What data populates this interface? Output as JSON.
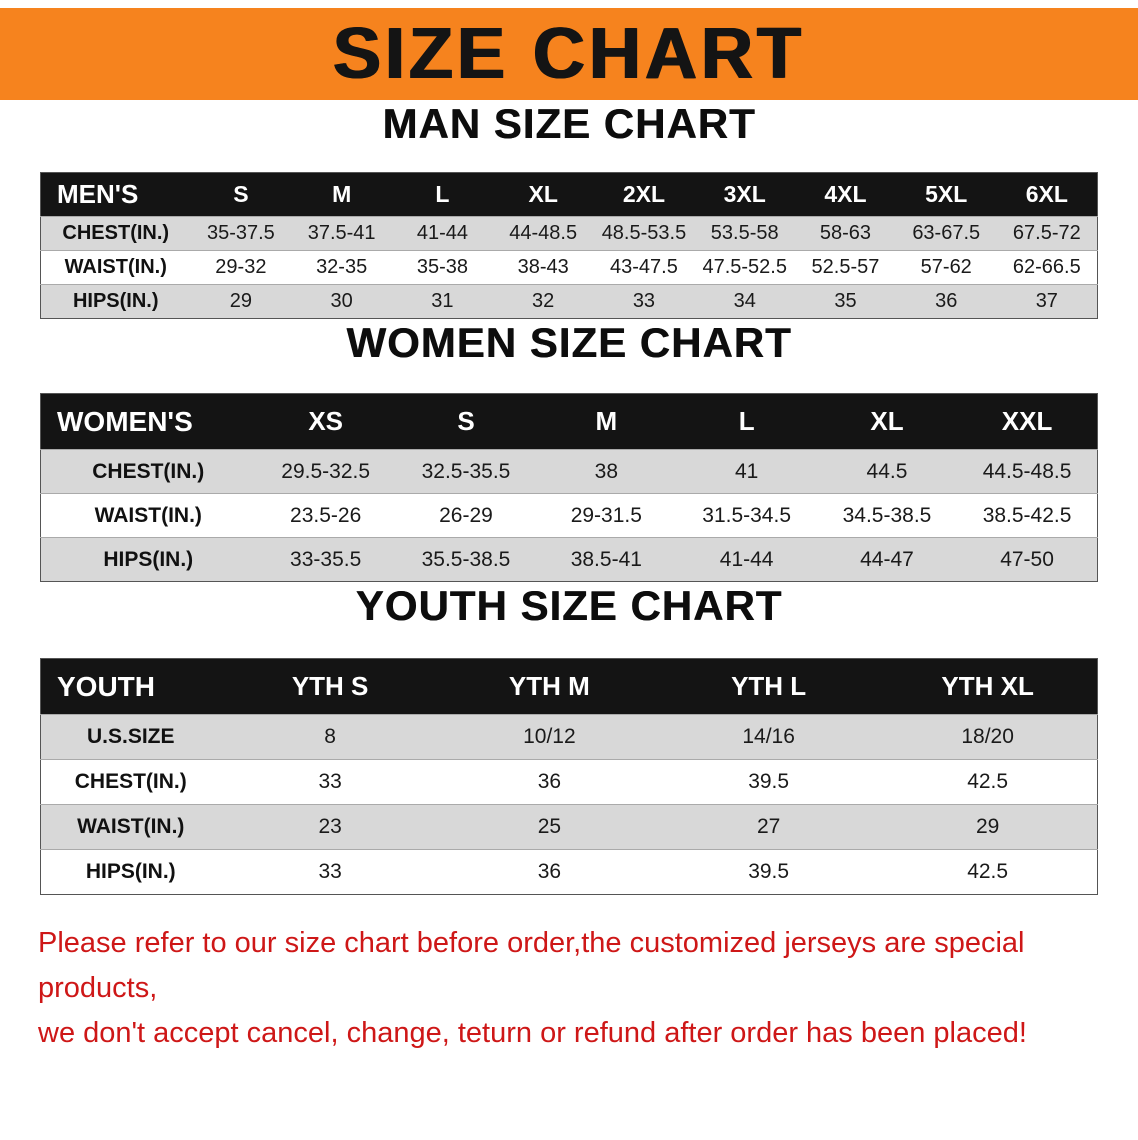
{
  "banner": {
    "title": "SIZE CHART"
  },
  "colors": {
    "banner_bg": "#F6831E",
    "table_header_bg": "#141414",
    "row_stripe": "#D8D8D8",
    "disclaimer_text": "#CE1717"
  },
  "sections": [
    {
      "heading": "MAN SIZE CHART",
      "table": {
        "header": [
          "MEN'S",
          "S",
          "M",
          "L",
          "XL",
          "2XL",
          "3XL",
          "4XL",
          "5XL",
          "6XL"
        ],
        "rows": [
          {
            "label": "CHEST(IN.)",
            "values": [
              "35-37.5",
              "37.5-41",
              "41-44",
              "44-48.5",
              "48.5-53.5",
              "53.5-58",
              "58-63",
              "63-67.5",
              "67.5-72"
            ]
          },
          {
            "label": "WAIST(IN.)",
            "values": [
              "29-32",
              "32-35",
              "35-38",
              "38-43",
              "43-47.5",
              "47.5-52.5",
              "52.5-57",
              "57-62",
              "62-66.5"
            ]
          },
          {
            "label": "HIPS(IN.)",
            "values": [
              "29",
              "30",
              "31",
              "32",
              "33",
              "34",
              "35",
              "36",
              "37"
            ]
          }
        ]
      }
    },
    {
      "heading": "WOMEN SIZE CHART",
      "table": {
        "header": [
          "WOMEN'S",
          "XS",
          "S",
          "M",
          "L",
          "XL",
          "XXL"
        ],
        "rows": [
          {
            "label": "CHEST(IN.)",
            "values": [
              "29.5-32.5",
              "32.5-35.5",
              "38",
              "41",
              "44.5",
              "44.5-48.5"
            ]
          },
          {
            "label": "WAIST(IN.)",
            "values": [
              "23.5-26",
              "26-29",
              "29-31.5",
              "31.5-34.5",
              "34.5-38.5",
              "38.5-42.5"
            ]
          },
          {
            "label": "HIPS(IN.)",
            "values": [
              "33-35.5",
              "35.5-38.5",
              "38.5-41",
              "41-44",
              "44-47",
              "47-50"
            ]
          }
        ]
      }
    },
    {
      "heading": "YOUTH SIZE CHART",
      "table": {
        "header": [
          "YOUTH",
          "YTH S",
          "YTH M",
          "YTH L",
          "YTH XL"
        ],
        "rows": [
          {
            "label": "U.S.SIZE",
            "values": [
              "8",
              "10/12",
              "14/16",
              "18/20"
            ]
          },
          {
            "label": "CHEST(IN.)",
            "values": [
              "33",
              "36",
              "39.5",
              "42.5"
            ]
          },
          {
            "label": "WAIST(IN.)",
            "values": [
              "23",
              "25",
              "27",
              "29"
            ]
          },
          {
            "label": "HIPS(IN.)",
            "values": [
              "33",
              "36",
              "39.5",
              "42.5"
            ]
          }
        ]
      }
    }
  ],
  "disclaimer": {
    "line1": "Please refer to our size chart before order,the customized jerseys are special products,",
    "line2": "we don't accept cancel, change, teturn or refund after order has been placed!"
  }
}
